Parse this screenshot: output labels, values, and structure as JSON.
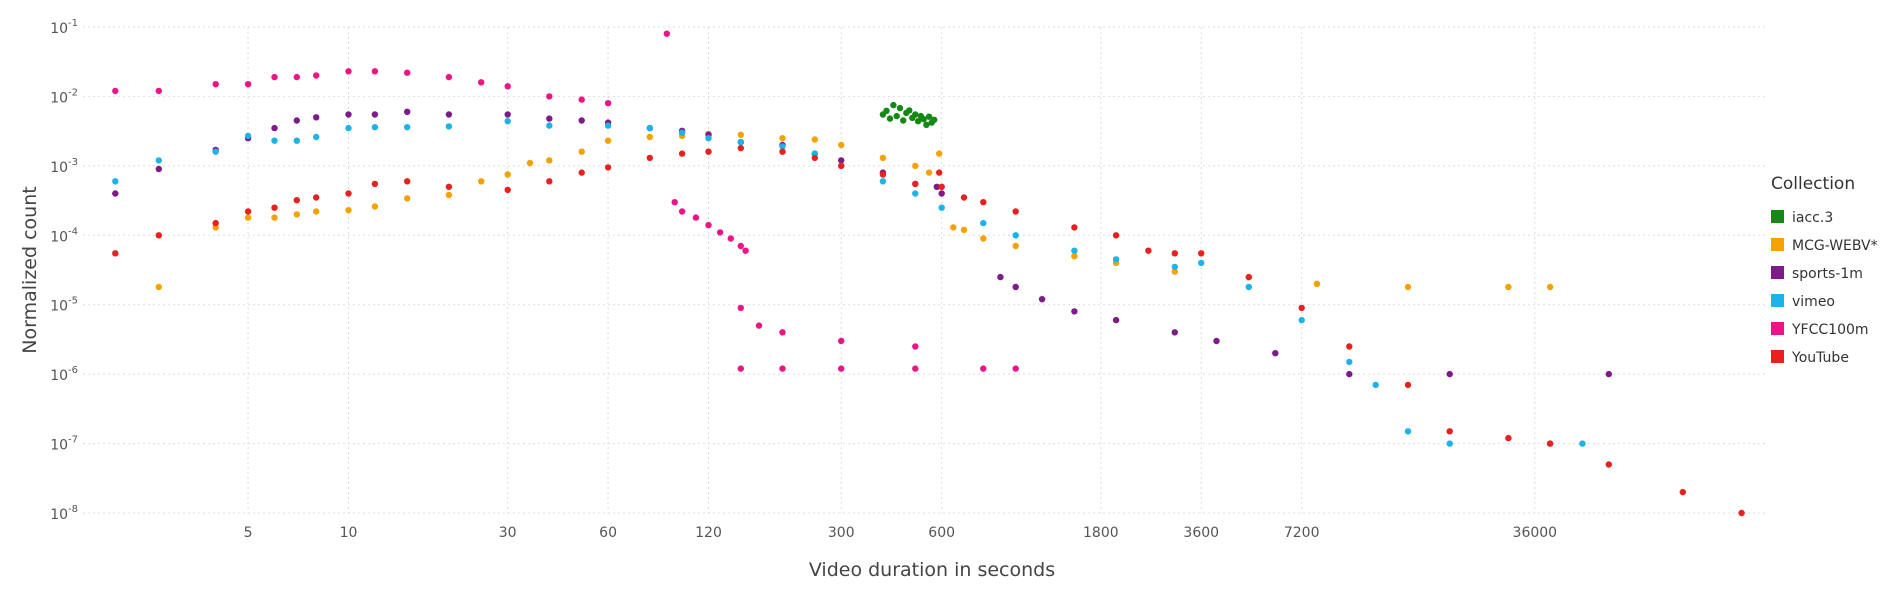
{
  "chart_data": {
    "type": "scatter",
    "title": "",
    "xlabel": "Video duration in seconds",
    "ylabel": "Normalized count",
    "x_scale": "log",
    "y_scale": "log",
    "xlim": [
      1.6,
      180000
    ],
    "ylim": [
      1e-08,
      0.1
    ],
    "grid": true,
    "x_ticks": [
      {
        "value": 5,
        "label": "5"
      },
      {
        "value": 10,
        "label": "10"
      },
      {
        "value": 30,
        "label": "30"
      },
      {
        "value": 60,
        "label": "60"
      },
      {
        "value": 120,
        "label": "120"
      },
      {
        "value": 300,
        "label": "300"
      },
      {
        "value": 600,
        "label": "600"
      },
      {
        "value": 1800,
        "label": "1800"
      },
      {
        "value": 3600,
        "label": "3600"
      },
      {
        "value": 7200,
        "label": "7200"
      },
      {
        "value": 36000,
        "label": "36000"
      }
    ],
    "y_ticks": [
      {
        "value": 0.1,
        "base": "10",
        "exp": "-1"
      },
      {
        "value": 0.01,
        "base": "10",
        "exp": "-2"
      },
      {
        "value": 0.001,
        "base": "10",
        "exp": "-3"
      },
      {
        "value": 0.0001,
        "base": "10",
        "exp": "-4"
      },
      {
        "value": 1e-05,
        "base": "10",
        "exp": "-5"
      },
      {
        "value": 1e-06,
        "base": "10",
        "exp": "-6"
      },
      {
        "value": 1e-07,
        "base": "10",
        "exp": "-7"
      },
      {
        "value": 1e-08,
        "base": "10",
        "exp": "-8"
      }
    ],
    "legend": {
      "title": "Collection",
      "position": "right"
    },
    "series": [
      {
        "name": "iacc.3",
        "color": "#138a13",
        "points": [
          [
            400,
            0.0055
          ],
          [
            410,
            0.0062
          ],
          [
            420,
            0.0048
          ],
          [
            430,
            0.0075
          ],
          [
            440,
            0.0052
          ],
          [
            450,
            0.0068
          ],
          [
            460,
            0.0045
          ],
          [
            470,
            0.0058
          ],
          [
            480,
            0.0063
          ],
          [
            490,
            0.0049
          ],
          [
            500,
            0.0055
          ],
          [
            510,
            0.0044
          ],
          [
            520,
            0.0052
          ],
          [
            530,
            0.0047
          ],
          [
            540,
            0.0039
          ],
          [
            550,
            0.0051
          ],
          [
            560,
            0.0042
          ],
          [
            570,
            0.0046
          ]
        ]
      },
      {
        "name": "MCG-WEBV*",
        "color": "#f5a200",
        "points": [
          [
            2.7,
            1.8e-05
          ],
          [
            4,
            0.00013
          ],
          [
            5,
            0.00018
          ],
          [
            6,
            0.00018
          ],
          [
            7,
            0.0002
          ],
          [
            8,
            0.00022
          ],
          [
            10,
            0.00023
          ],
          [
            12,
            0.00026
          ],
          [
            15,
            0.00034
          ],
          [
            20,
            0.00038
          ],
          [
            25,
            0.0006
          ],
          [
            30,
            0.00075
          ],
          [
            35,
            0.0011
          ],
          [
            40,
            0.0012
          ],
          [
            50,
            0.0016
          ],
          [
            60,
            0.0023
          ],
          [
            80,
            0.0026
          ],
          [
            100,
            0.0027
          ],
          [
            120,
            0.0029
          ],
          [
            150,
            0.0028
          ],
          [
            200,
            0.0025
          ],
          [
            250,
            0.0024
          ],
          [
            300,
            0.002
          ],
          [
            400,
            0.0013
          ],
          [
            500,
            0.001
          ],
          [
            550,
            0.0008
          ],
          [
            590,
            0.0015
          ],
          [
            650,
            0.00013
          ],
          [
            700,
            0.00012
          ],
          [
            800,
            9e-05
          ],
          [
            1000,
            7e-05
          ],
          [
            1500,
            5e-05
          ],
          [
            2000,
            4e-05
          ],
          [
            3000,
            3e-05
          ],
          [
            5000,
            2.5e-05
          ],
          [
            8000,
            2e-05
          ],
          [
            15000,
            1.8e-05
          ],
          [
            30000,
            1.8e-05
          ],
          [
            40000,
            1.8e-05
          ]
        ]
      },
      {
        "name": "sports-1m",
        "color": "#7f1a8a",
        "points": [
          [
            2,
            0.0004
          ],
          [
            2.7,
            0.0009
          ],
          [
            4,
            0.0017
          ],
          [
            5,
            0.0025
          ],
          [
            6,
            0.0035
          ],
          [
            7,
            0.0045
          ],
          [
            8,
            0.005
          ],
          [
            10,
            0.0055
          ],
          [
            12,
            0.0055
          ],
          [
            15,
            0.006
          ],
          [
            20,
            0.0055
          ],
          [
            30,
            0.0055
          ],
          [
            40,
            0.0048
          ],
          [
            50,
            0.0045
          ],
          [
            60,
            0.0042
          ],
          [
            80,
            0.0035
          ],
          [
            100,
            0.0032
          ],
          [
            120,
            0.0028
          ],
          [
            150,
            0.0022
          ],
          [
            200,
            0.002
          ],
          [
            250,
            0.0015
          ],
          [
            300,
            0.0012
          ],
          [
            400,
            0.0008
          ],
          [
            500,
            0.00055
          ],
          [
            580,
            0.0005
          ],
          [
            600,
            0.0004
          ],
          [
            900,
            2.5e-05
          ],
          [
            1000,
            1.8e-05
          ],
          [
            1200,
            1.2e-05
          ],
          [
            1500,
            8e-06
          ],
          [
            2000,
            6e-06
          ],
          [
            3000,
            4e-06
          ],
          [
            4000,
            3e-06
          ],
          [
            6000,
            2e-06
          ],
          [
            10000,
            1e-06
          ],
          [
            20000,
            1e-06
          ],
          [
            60000,
            1e-06
          ]
        ]
      },
      {
        "name": "vimeo",
        "color": "#1cb4e8",
        "points": [
          [
            2,
            0.0006
          ],
          [
            2.7,
            0.0012
          ],
          [
            4,
            0.0016
          ],
          [
            5,
            0.0027
          ],
          [
            6,
            0.0023
          ],
          [
            7,
            0.0023
          ],
          [
            8,
            0.0026
          ],
          [
            10,
            0.0035
          ],
          [
            12,
            0.0036
          ],
          [
            15,
            0.0036
          ],
          [
            20,
            0.0037
          ],
          [
            30,
            0.0044
          ],
          [
            40,
            0.0038
          ],
          [
            60,
            0.0038
          ],
          [
            80,
            0.0035
          ],
          [
            100,
            0.003
          ],
          [
            120,
            0.0025
          ],
          [
            150,
            0.0022
          ],
          [
            200,
            0.0019
          ],
          [
            250,
            0.0015
          ],
          [
            300,
            0.001
          ],
          [
            400,
            0.0006
          ],
          [
            500,
            0.0004
          ],
          [
            600,
            0.00025
          ],
          [
            800,
            0.00015
          ],
          [
            1000,
            0.0001
          ],
          [
            1500,
            6e-05
          ],
          [
            2000,
            4.5e-05
          ],
          [
            3000,
            3.5e-05
          ],
          [
            3600,
            4e-05
          ],
          [
            5000,
            1.8e-05
          ],
          [
            7200,
            6e-06
          ],
          [
            10000,
            1.5e-06
          ],
          [
            12000,
            7e-07
          ],
          [
            15000,
            1.5e-07
          ],
          [
            20000,
            1e-07
          ],
          [
            40000,
            1e-07
          ],
          [
            50000,
            1e-07
          ]
        ]
      },
      {
        "name": "YFCC100m",
        "color": "#ee1486",
        "points": [
          [
            2,
            0.012
          ],
          [
            2.7,
            0.012
          ],
          [
            4,
            0.015
          ],
          [
            5,
            0.015
          ],
          [
            6,
            0.019
          ],
          [
            7,
            0.019
          ],
          [
            8,
            0.02
          ],
          [
            10,
            0.023
          ],
          [
            12,
            0.023
          ],
          [
            15,
            0.022
          ],
          [
            20,
            0.019
          ],
          [
            25,
            0.016
          ],
          [
            30,
            0.014
          ],
          [
            40,
            0.01
          ],
          [
            50,
            0.009
          ],
          [
            60,
            0.008
          ],
          [
            90,
            0.08
          ],
          [
            95,
            0.0003
          ],
          [
            100,
            0.00022
          ],
          [
            110,
            0.00018
          ],
          [
            120,
            0.00014
          ],
          [
            130,
            0.00011
          ],
          [
            140,
            9e-05
          ],
          [
            150,
            7e-05
          ],
          [
            155,
            6e-05
          ],
          [
            150,
            9e-06
          ],
          [
            170,
            5e-06
          ],
          [
            200,
            4e-06
          ],
          [
            300,
            3e-06
          ],
          [
            500,
            2.5e-06
          ],
          [
            150,
            1.2e-06
          ],
          [
            200,
            1.2e-06
          ],
          [
            300,
            1.2e-06
          ],
          [
            500,
            1.2e-06
          ],
          [
            800,
            1.2e-06
          ],
          [
            1000,
            1.2e-06
          ]
        ]
      },
      {
        "name": "YouTube",
        "color": "#e8211f",
        "points": [
          [
            2,
            5.5e-05
          ],
          [
            2.7,
            0.0001
          ],
          [
            4,
            0.00015
          ],
          [
            5,
            0.00022
          ],
          [
            6,
            0.00025
          ],
          [
            7,
            0.00032
          ],
          [
            8,
            0.00035
          ],
          [
            10,
            0.0004
          ],
          [
            12,
            0.00055
          ],
          [
            15,
            0.0006
          ],
          [
            20,
            0.0005
          ],
          [
            30,
            0.00045
          ],
          [
            40,
            0.0006
          ],
          [
            50,
            0.0008
          ],
          [
            60,
            0.00095
          ],
          [
            80,
            0.0013
          ],
          [
            100,
            0.0015
          ],
          [
            120,
            0.0016
          ],
          [
            150,
            0.0018
          ],
          [
            200,
            0.0016
          ],
          [
            250,
            0.0013
          ],
          [
            300,
            0.001
          ],
          [
            400,
            0.00075
          ],
          [
            500,
            0.00055
          ],
          [
            590,
            0.0008
          ],
          [
            600,
            0.0005
          ],
          [
            700,
            0.00035
          ],
          [
            800,
            0.0003
          ],
          [
            1000,
            0.00022
          ],
          [
            1500,
            0.00013
          ],
          [
            2000,
            0.0001
          ],
          [
            2500,
            6e-05
          ],
          [
            3000,
            5.5e-05
          ],
          [
            3600,
            5.5e-05
          ],
          [
            5000,
            2.5e-05
          ],
          [
            7200,
            9e-06
          ],
          [
            10000,
            2.5e-06
          ],
          [
            15000,
            7e-07
          ],
          [
            20000,
            1.5e-07
          ],
          [
            30000,
            1.2e-07
          ],
          [
            40000,
            1e-07
          ],
          [
            60000,
            5e-08
          ],
          [
            100000,
            2e-08
          ],
          [
            150000,
            1e-08
          ]
        ]
      }
    ]
  }
}
